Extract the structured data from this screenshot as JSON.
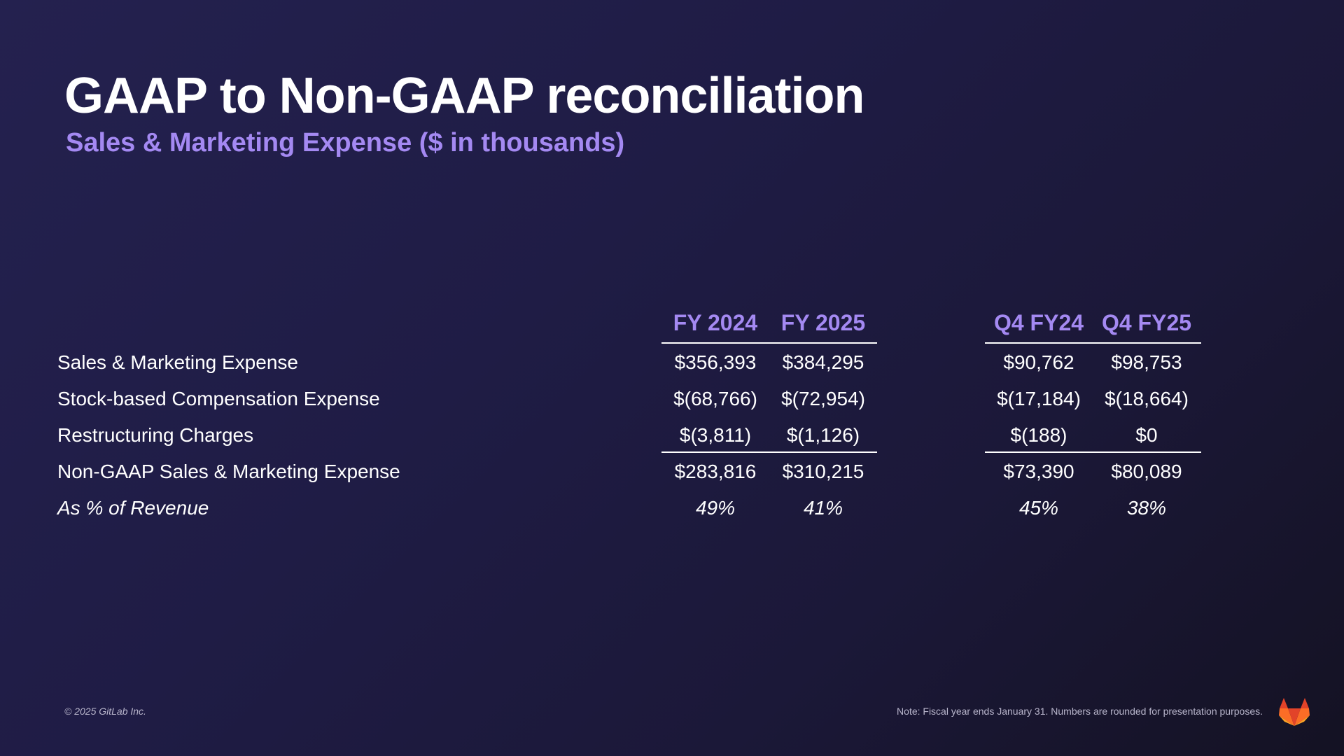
{
  "slide": {
    "title": "GAAP to Non-GAAP reconciliation",
    "subtitle": "Sales & Marketing Expense ($ in thousands)"
  },
  "table": {
    "columns": [
      "FY 2024",
      "FY 2025",
      "Q4 FY24",
      "Q4 FY25"
    ],
    "rows": [
      {
        "label": "Sales & Marketing Expense",
        "values": [
          "$356,393",
          "$384,295",
          "$90,762",
          "$98,753"
        ],
        "italic": false
      },
      {
        "label": "Stock-based Compensation Expense",
        "values": [
          "$(68,766)",
          "$(72,954)",
          "$(17,184)",
          "$(18,664)"
        ],
        "italic": false
      },
      {
        "label": "Restructuring Charges",
        "values": [
          "$(3,811)",
          "$(1,126)",
          "$(188)",
          "$0"
        ],
        "italic": false
      },
      {
        "label": "Non-GAAP Sales & Marketing Expense",
        "values": [
          "$283,816",
          "$310,215",
          "$73,390",
          "$80,089"
        ],
        "italic": false
      },
      {
        "label": "As % of Revenue",
        "values": [
          "49%",
          "41%",
          "45%",
          "38%"
        ],
        "italic": true
      }
    ]
  },
  "footer": {
    "copyright": "© 2025 GitLab Inc.",
    "note": "Note: Fiscal year ends January 31. Numbers are rounded for presentation purposes."
  },
  "logo": {
    "icon": "gitlab-tanuki-icon",
    "colors": {
      "primary": "#e24329",
      "secondary": "#fc6d26",
      "accent": "#fca326"
    }
  }
}
